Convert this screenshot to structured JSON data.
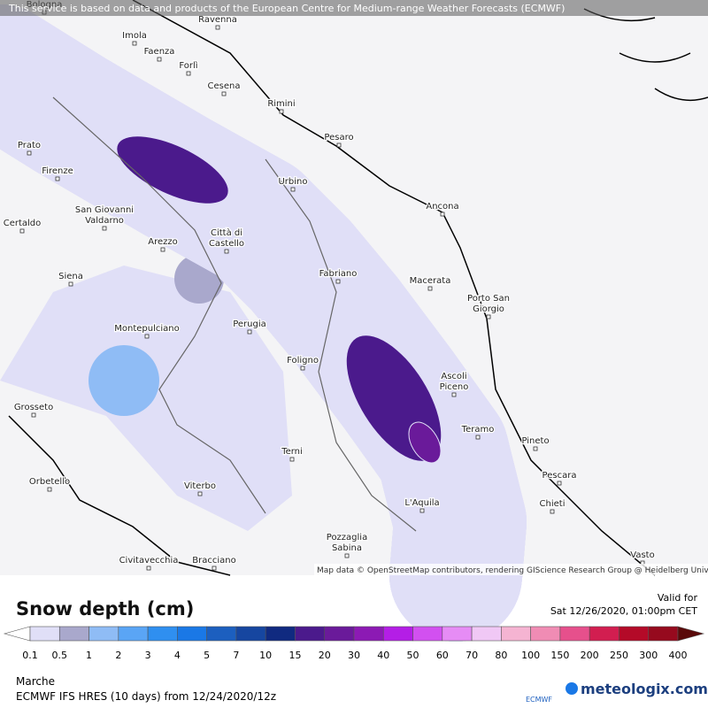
{
  "banner": "This service is based on data and products of the European Centre for Medium-range Weather Forecasts (ECMWF)",
  "cities": [
    [
      "Bologna"
    ],
    [
      "Ravenna"
    ],
    [
      "Imola"
    ],
    [
      "Faenza"
    ],
    [
      "Forlì"
    ],
    [
      "Cesena"
    ],
    [
      "Rimini"
    ],
    [
      "Pesaro"
    ],
    [
      "Prato"
    ],
    [
      "Firenze"
    ],
    [
      "Urbino"
    ],
    [
      "Ancona"
    ],
    [
      "San Giovanni",
      "Valdarno"
    ],
    [
      "Certaldo"
    ],
    [
      "Arezzo"
    ],
    [
      "Città di",
      "Castello"
    ],
    [
      "Siena"
    ],
    [
      "Fabriano"
    ],
    [
      "Macerata"
    ],
    [
      "Porto San",
      "Giorgio"
    ],
    [
      "Montepulciano"
    ],
    [
      "Perugia"
    ],
    [
      "Foligno"
    ],
    [
      "Ascoli",
      "Piceno"
    ],
    [
      "Grosseto"
    ],
    [
      "Teramo"
    ],
    [
      "Pineto"
    ],
    [
      "Terni"
    ],
    [
      "Pescara"
    ],
    [
      "Orbetello"
    ],
    [
      "Viterbo"
    ],
    [
      "L'Aquila"
    ],
    [
      "Chieti"
    ],
    [
      "Pozzaglia",
      "Sabina"
    ],
    [
      "Civitavecchia"
    ],
    [
      "Bracciano"
    ],
    [
      "Vasto"
    ]
  ],
  "attribution": "Map data © OpenStreetMap contributors, rendering GIScience Research Group @ Heidelberg University",
  "legend": {
    "title": "Snow depth (cm)",
    "valid_label": "Valid for",
    "valid_time": "Sat 12/26/2020, 01:00pm CET",
    "levels": [
      0.1,
      0.5,
      1,
      2,
      3,
      4,
      5,
      7,
      10,
      15,
      20,
      30,
      40,
      50,
      60,
      70,
      80,
      100,
      150,
      200,
      250,
      300,
      400
    ],
    "colors": [
      "#ffffff",
      "#e0dff7",
      "#a9a8cc",
      "#8fbcf5",
      "#5aa5f5",
      "#2f8ff0",
      "#1a78e6",
      "#1c5fbf",
      "#1646a0",
      "#102a80",
      "#4b1a8c",
      "#6a1a9a",
      "#8c1ab4",
      "#b41ee6",
      "#d250f0",
      "#e68cf5",
      "#f0c8f5",
      "#f5b4d2",
      "#f08cb4",
      "#e6508c",
      "#d21e50",
      "#b40a28",
      "#960a1e",
      "#5a0a0a"
    ]
  },
  "footer": {
    "region": "Marche",
    "model": "ECMWF IFS HRES (10 days) from 12/24/2020/12z",
    "ecmwf": "ECMWF",
    "brand": "meteologix.com"
  }
}
